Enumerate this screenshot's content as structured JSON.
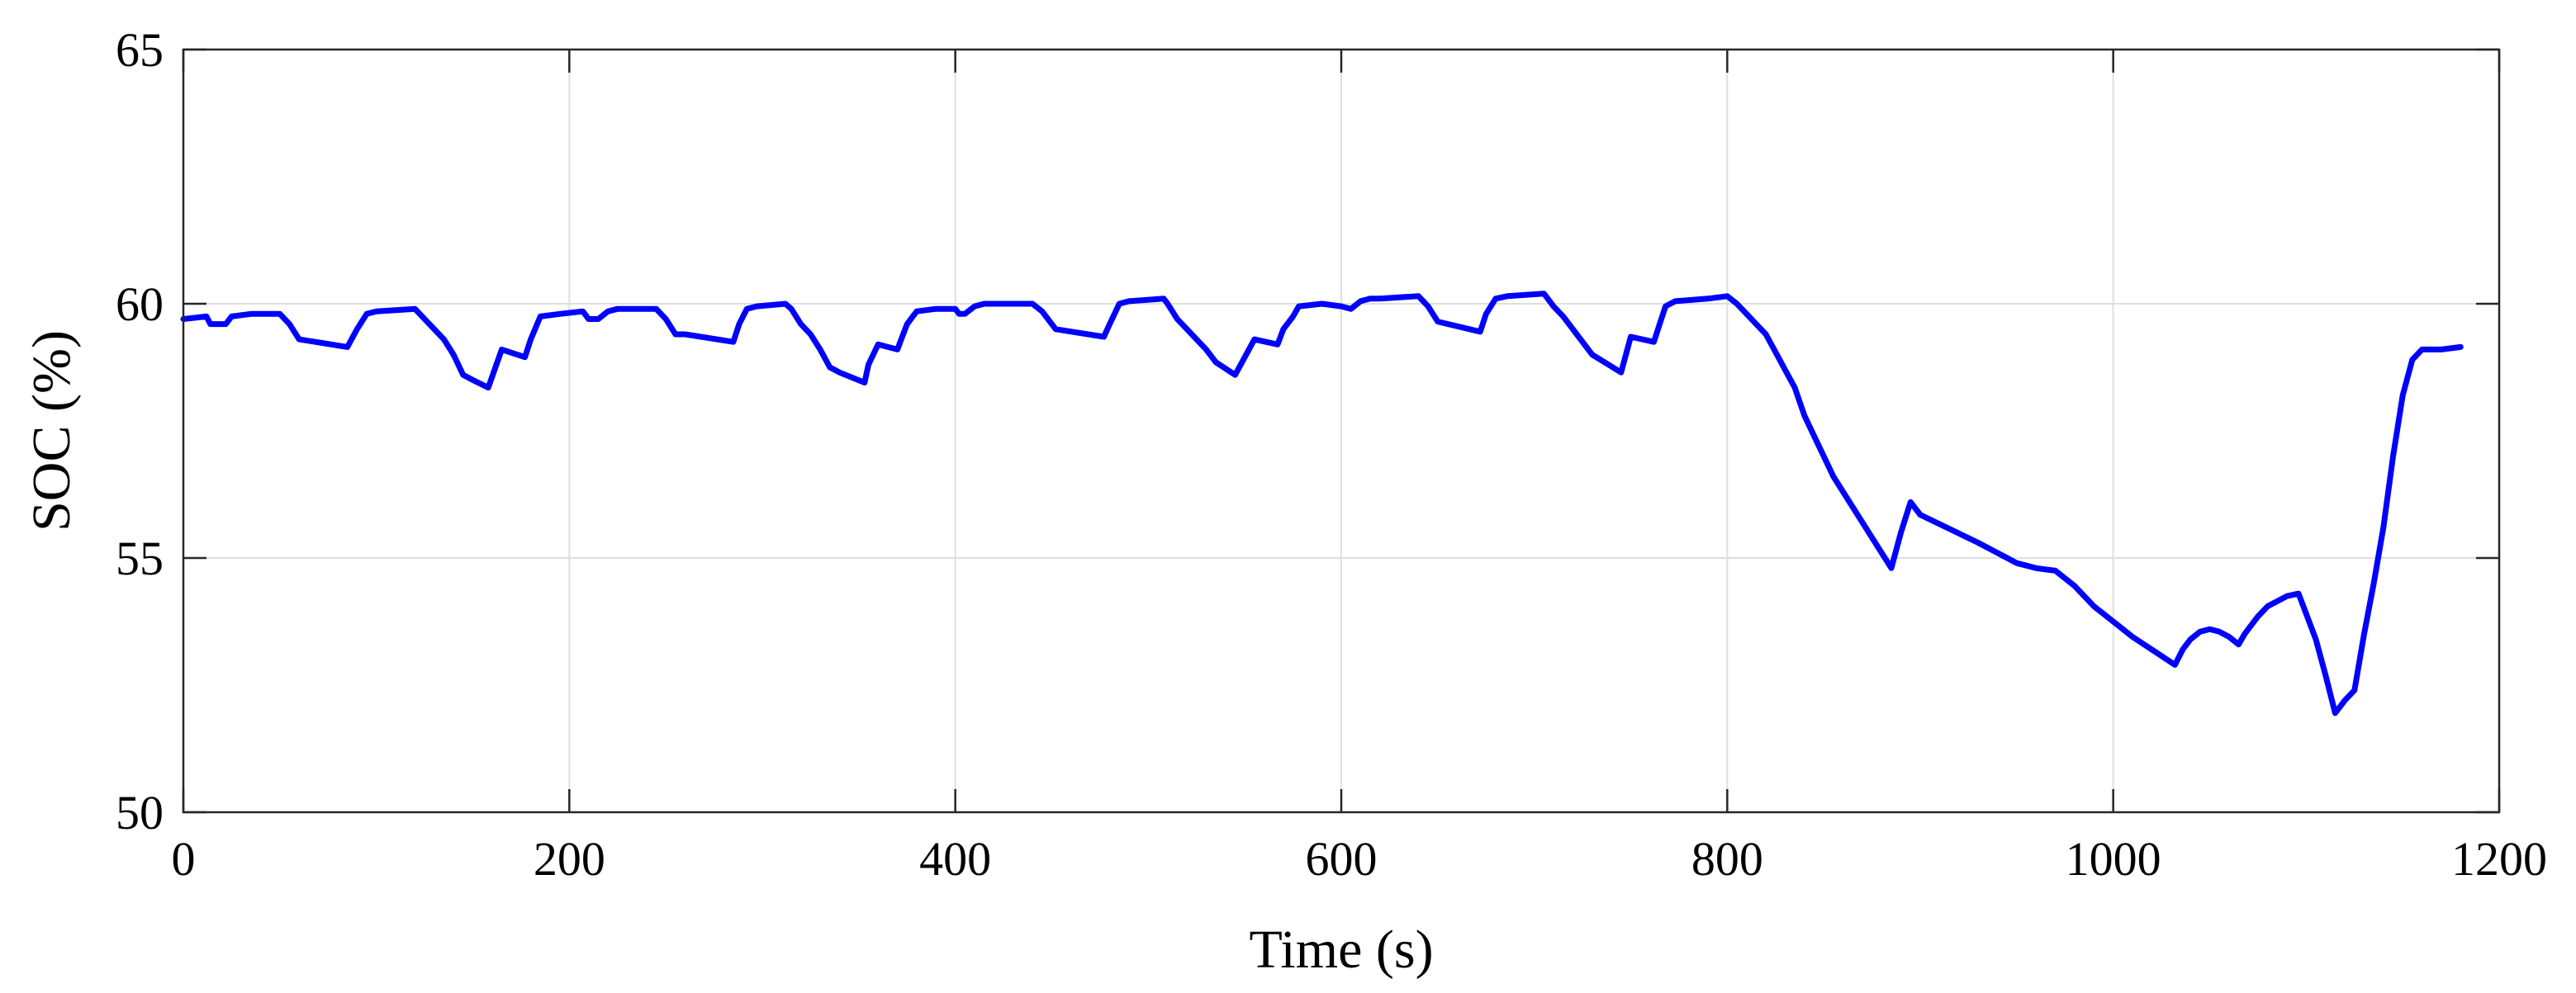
{
  "chart_data": {
    "type": "line",
    "title": "",
    "xlabel": "Time (s)",
    "ylabel": "SOC (%)",
    "xlim": [
      0,
      1200
    ],
    "ylim": [
      50,
      65
    ],
    "xticks": [
      0,
      200,
      400,
      600,
      800,
      1000,
      1200
    ],
    "yticks": [
      50,
      55,
      60,
      65
    ],
    "grid": true,
    "series": [
      {
        "color": "#0000ff",
        "x": [
          0,
          12,
          14,
          22,
          25,
          35,
          50,
          55,
          60,
          85,
          90,
          95,
          100,
          120,
          125,
          130,
          135,
          140,
          145,
          150,
          158,
          165,
          177,
          180,
          185,
          195,
          207,
          210,
          215,
          220,
          225,
          235,
          245,
          250,
          255,
          260,
          285,
          288,
          292,
          297,
          312,
          315,
          320,
          325,
          330,
          335,
          340,
          353,
          355,
          360,
          370,
          372,
          375,
          380,
          390,
          400,
          402,
          405,
          410,
          415,
          420,
          440,
          445,
          450,
          452,
          477,
          480,
          485,
          490,
          508,
          510,
          515,
          520,
          530,
          535,
          545,
          555,
          567,
          570,
          575,
          578,
          590,
          600,
          605,
          610,
          615,
          620,
          640,
          645,
          650,
          672,
          675,
          680,
          686,
          705,
          710,
          715,
          720,
          730,
          745,
          750,
          762,
          765,
          768,
          773,
          790,
          800,
          805,
          810,
          815,
          820,
          825,
          830,
          835,
          840,
          845,
          850,
          855,
          885,
          890,
          895,
          900,
          930,
          945,
          950,
          955,
          960,
          970,
          975,
          980,
          985,
          990,
          1000,
          1010,
          1020,
          1032,
          1036,
          1040,
          1045,
          1050,
          1055,
          1060,
          1065,
          1068,
          1070,
          1075,
          1080,
          1090,
          1096,
          1098,
          1105,
          1110,
          1115,
          1120,
          1125,
          1130,
          1135,
          1140,
          1145,
          1150,
          1155,
          1160,
          1165,
          1170,
          1180
        ],
        "y": [
          59.7,
          59.75,
          59.6,
          59.6,
          59.75,
          59.8,
          59.8,
          59.6,
          59.3,
          59.15,
          59.5,
          59.8,
          59.85,
          59.9,
          59.7,
          59.5,
          59.3,
          59.0,
          58.6,
          58.5,
          58.35,
          59.1,
          58.95,
          59.3,
          59.75,
          59.8,
          59.85,
          59.7,
          59.7,
          59.85,
          59.9,
          59.9,
          59.9,
          59.7,
          59.4,
          59.4,
          59.25,
          59.6,
          59.9,
          59.95,
          60.0,
          59.9,
          59.6,
          59.4,
          59.1,
          58.75,
          58.65,
          58.45,
          58.8,
          59.2,
          59.1,
          59.3,
          59.6,
          59.85,
          59.9,
          59.9,
          59.8,
          59.8,
          59.95,
          60.0,
          60.0,
          60.0,
          59.85,
          59.6,
          59.5,
          59.35,
          59.6,
          60.0,
          60.05,
          60.1,
          60.0,
          59.7,
          59.5,
          59.1,
          58.85,
          58.6,
          59.3,
          59.2,
          59.5,
          59.75,
          59.95,
          60.0,
          59.95,
          59.9,
          60.05,
          60.1,
          60.1,
          60.15,
          59.95,
          59.65,
          59.45,
          59.8,
          60.1,
          60.15,
          60.2,
          59.95,
          59.75,
          59.5,
          59.0,
          58.65,
          59.35,
          59.25,
          59.6,
          59.95,
          60.05,
          60.1,
          60.15,
          60.0,
          59.8,
          59.6,
          59.4,
          59.05,
          58.7,
          58.35,
          57.8,
          57.4,
          57.0,
          56.6,
          54.8,
          55.5,
          56.1,
          55.85,
          55.3,
          55.0,
          54.9,
          54.85,
          54.8,
          54.75,
          54.6,
          54.45,
          54.25,
          54.05,
          53.75,
          53.45,
          53.2,
          52.9,
          53.2,
          53.4,
          53.55,
          53.6,
          53.55,
          53.45,
          53.3,
          53.5,
          53.6,
          53.85,
          54.05,
          54.25,
          54.3,
          54.1,
          53.4,
          52.7,
          51.95,
          52.2,
          52.4,
          53.5,
          54.5,
          55.6,
          57.0,
          58.2,
          58.9,
          59.1,
          59.1,
          59.1,
          59.15
        ]
      }
    ]
  }
}
